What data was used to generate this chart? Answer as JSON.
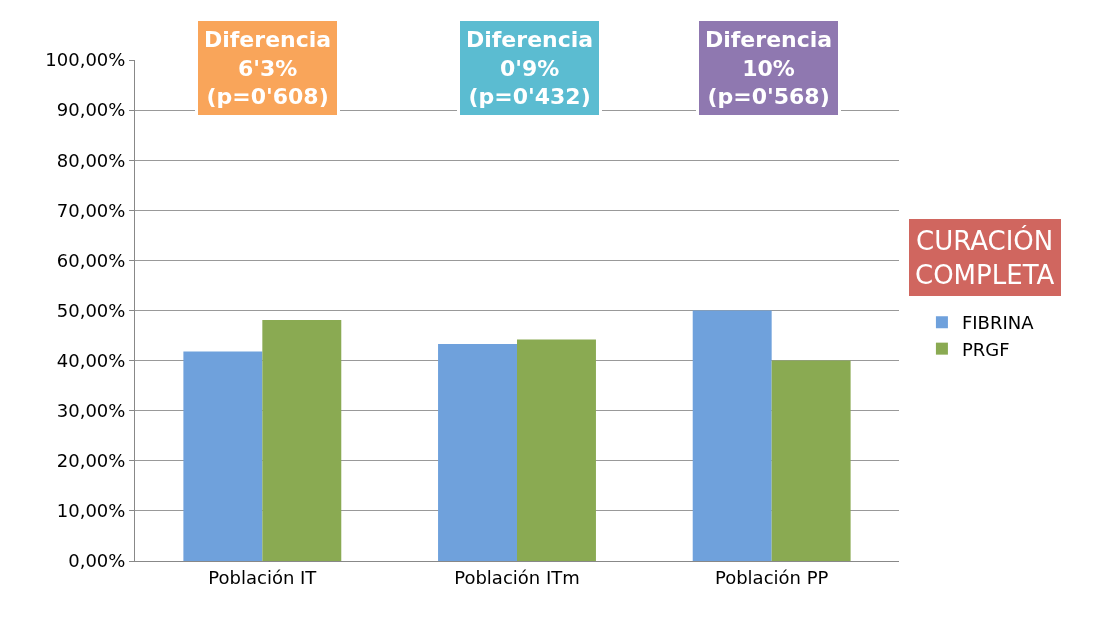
{
  "chart_data": {
    "type": "bar",
    "categories": [
      "Población IT",
      "Población ITm",
      "Población PP"
    ],
    "series": [
      {
        "name": "FIBRINA",
        "color": "#6fa1dc",
        "values": [
          41.8,
          43.3,
          50
        ]
      },
      {
        "name": "PRGF",
        "color": "#8aaa52",
        "values": [
          48.1,
          44.2,
          40
        ]
      }
    ],
    "ylim": [
      0,
      100
    ],
    "yticks": [
      {
        "value": 0,
        "label": "0,00%"
      },
      {
        "value": 10,
        "label": "10,00%"
      },
      {
        "value": 20,
        "label": "20,00%"
      },
      {
        "value": 30,
        "label": "30,00%"
      },
      {
        "value": 40,
        "label": "40,00%"
      },
      {
        "value": 50,
        "label": "50,00%"
      },
      {
        "value": 60,
        "label": "60,00%"
      },
      {
        "value": 70,
        "label": "70,00%"
      },
      {
        "value": 80,
        "label": "80,00%"
      },
      {
        "value": 90,
        "label": "90,00%"
      },
      {
        "value": 100,
        "label": "100,00%"
      }
    ],
    "grid": "y",
    "legend": "right",
    "annotations": [
      "Diferencia\n6'3%\n(p=0'608)",
      "Diferencia\n0'9%\n(p=0'432)",
      "Diferencia\n10%\n(p=0'568)",
      "CURACIÓN\nCOMPLETA"
    ]
  }
}
